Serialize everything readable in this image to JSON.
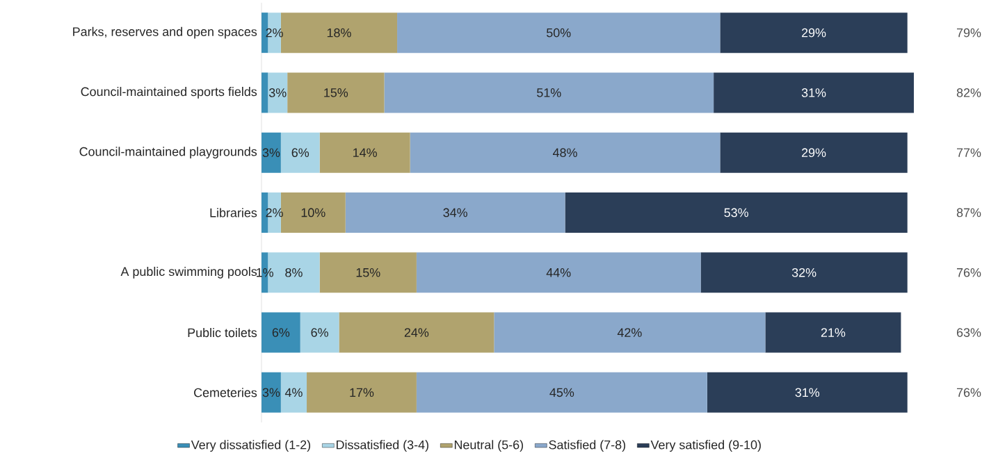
{
  "chart_data": {
    "type": "bar",
    "orientation": "horizontal",
    "stacked": true,
    "legend": "bottom",
    "categories": [
      "Parks, reserves and open spaces",
      "Council-maintained sports fields",
      "Council-maintained playgrounds",
      "Libraries",
      "A public swimming pools",
      "Public toilets",
      "Cemeteries"
    ],
    "series": [
      {
        "name": "Very dissatisfied (1-2)",
        "color": "#3a8fb7",
        "values": [
          1,
          1,
          3,
          1,
          1,
          6,
          3
        ],
        "value_labels": [
          null,
          null,
          "3%",
          null,
          "1%",
          "6%",
          "3%"
        ]
      },
      {
        "name": "Dissatisfied (3-4)",
        "color": "#a9d5e6",
        "values": [
          2,
          3,
          6,
          2,
          8,
          6,
          4
        ],
        "value_labels": [
          "2%",
          "3%",
          "6%",
          "2%",
          "8%",
          "6%",
          "4%"
        ]
      },
      {
        "name": "Neutral (5-6)",
        "color": "#b0a36e",
        "values": [
          18,
          15,
          14,
          10,
          15,
          24,
          17
        ],
        "value_labels": [
          "18%",
          "15%",
          "14%",
          "10%",
          "15%",
          "24%",
          "17%"
        ]
      },
      {
        "name": "Satisfied (7-8)",
        "color": "#8aa8cb",
        "values": [
          50,
          51,
          48,
          34,
          44,
          42,
          45
        ],
        "value_labels": [
          "50%",
          "51%",
          "48%",
          "34%",
          "44%",
          "42%",
          "45%"
        ]
      },
      {
        "name": "Very satisfied (9-10)",
        "color": "#2b3e58",
        "values": [
          29,
          31,
          29,
          53,
          32,
          21,
          31
        ],
        "value_labels": [
          "29%",
          "31%",
          "29%",
          "53%",
          "32%",
          "21%",
          "31%"
        ]
      }
    ],
    "annotations": [
      "79%",
      "82%",
      "77%",
      "87%",
      "76%",
      "63%",
      "76%"
    ]
  }
}
